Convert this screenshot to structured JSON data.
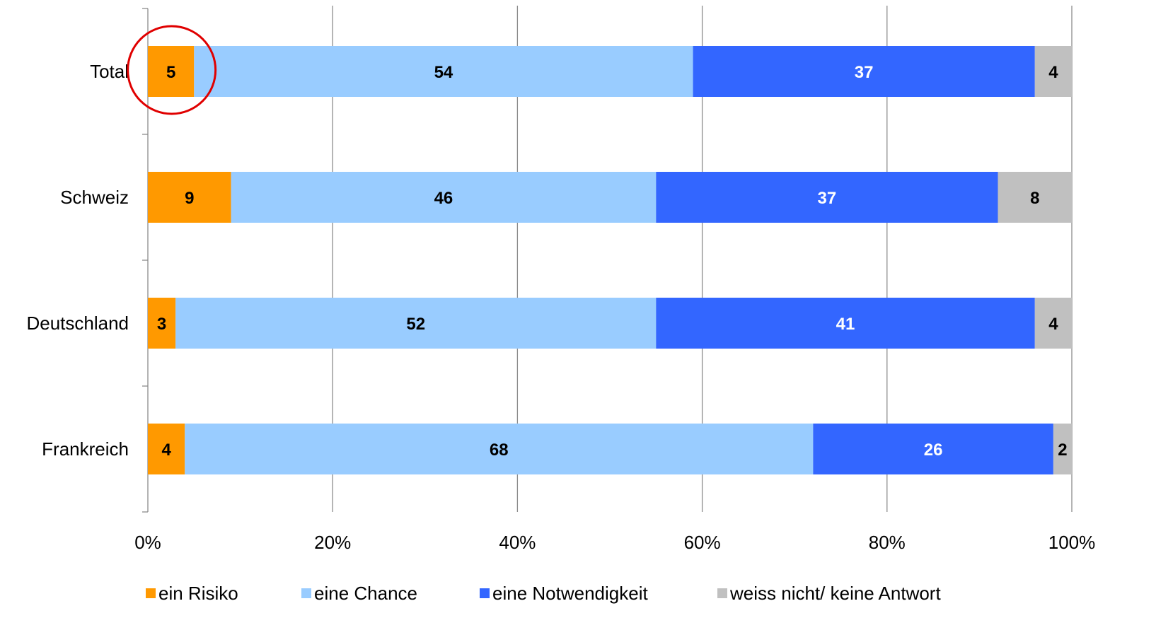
{
  "chart_data": {
    "type": "bar",
    "orientation": "horizontal",
    "stacked": true,
    "categories": [
      "Total",
      "Schweiz",
      "Deutschland",
      "Frankreich"
    ],
    "series": [
      {
        "name": "ein Risiko",
        "values": [
          5,
          9,
          3,
          4
        ],
        "color": "#FF9900",
        "label_color": "#000000"
      },
      {
        "name": "eine Chance",
        "values": [
          54,
          46,
          52,
          68
        ],
        "color": "#99CCFF",
        "label_color": "#000000"
      },
      {
        "name": "eine Notwendigkeit",
        "values": [
          37,
          37,
          41,
          26
        ],
        "color": "#3366FF",
        "label_color": "#FFFFFF"
      },
      {
        "name": "weiss nicht/ keine Antwort",
        "values": [
          4,
          8,
          4,
          2
        ],
        "color": "#C0C0C0",
        "label_color": "#000000"
      }
    ],
    "xlim": [
      0,
      100
    ],
    "x_ticks": [
      "0%",
      "20%",
      "40%",
      "60%",
      "80%",
      "100%"
    ],
    "grid": "vertical",
    "legend_position": "bottom",
    "annotation": {
      "type": "circle",
      "target": "Total / ein Risiko",
      "color": "#E00000"
    }
  }
}
